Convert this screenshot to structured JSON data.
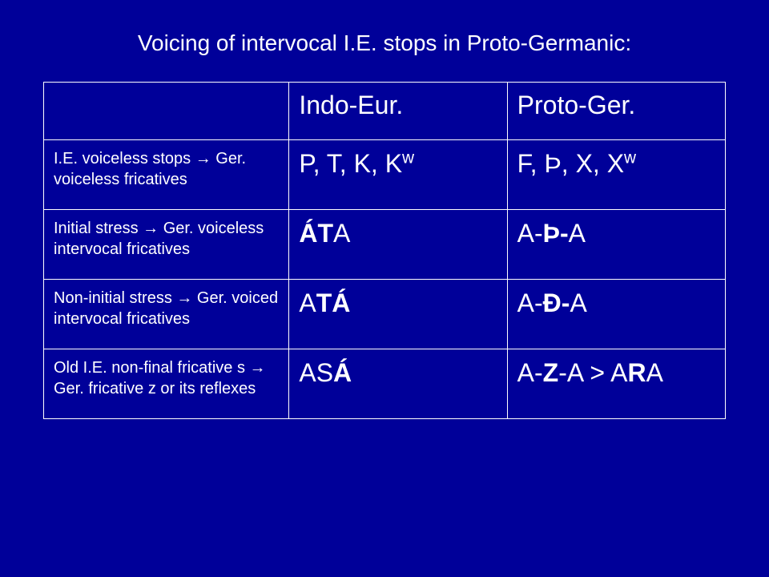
{
  "colors": {
    "background": "#000099",
    "text": "#ffffff",
    "border": "#ffffff"
  },
  "title": {
    "text": "Voicing of intervocal I.E. stops in Proto-Germanic:",
    "fontsize": 28
  },
  "table": {
    "header_fontsize": 32,
    "desc_fontsize": 20,
    "big_fontsize": 32,
    "header": {
      "col0": "",
      "col1": "Indo-Eur.",
      "col2": "Proto-Ger."
    },
    "rows": [
      {
        "desc": "I.E. voiceless  stops → Ger. voiceless fricatives",
        "ie_html": "P, T, K, K<sup>w</sup>",
        "pg_html": "F, Þ, X, X<sup>w</sup>"
      },
      {
        "desc": "Initial stress → Ger. voiceless intervocal fricatives",
        "ie_html": "<span class=\"b\">ÁT</span>A",
        "pg_html": "A-<span class=\"b\">Þ-</span>A"
      },
      {
        "desc": "Non-initial stress → Ger. voiced intervocal fricatives",
        "ie_html": "A<span class=\"b\">TÁ</span>",
        "pg_html": "A-<span class=\"b\">Đ-</span>A"
      },
      {
        "desc": "Old I.E. non-final fricative s → Ger. fricative z or its reflexes",
        "ie_html": "AS<span class=\"b\">Á</span>",
        "pg_html": "A-<span class=\"b\">Z</span>-A > A<span class=\"b\">R</span>A"
      }
    ]
  }
}
